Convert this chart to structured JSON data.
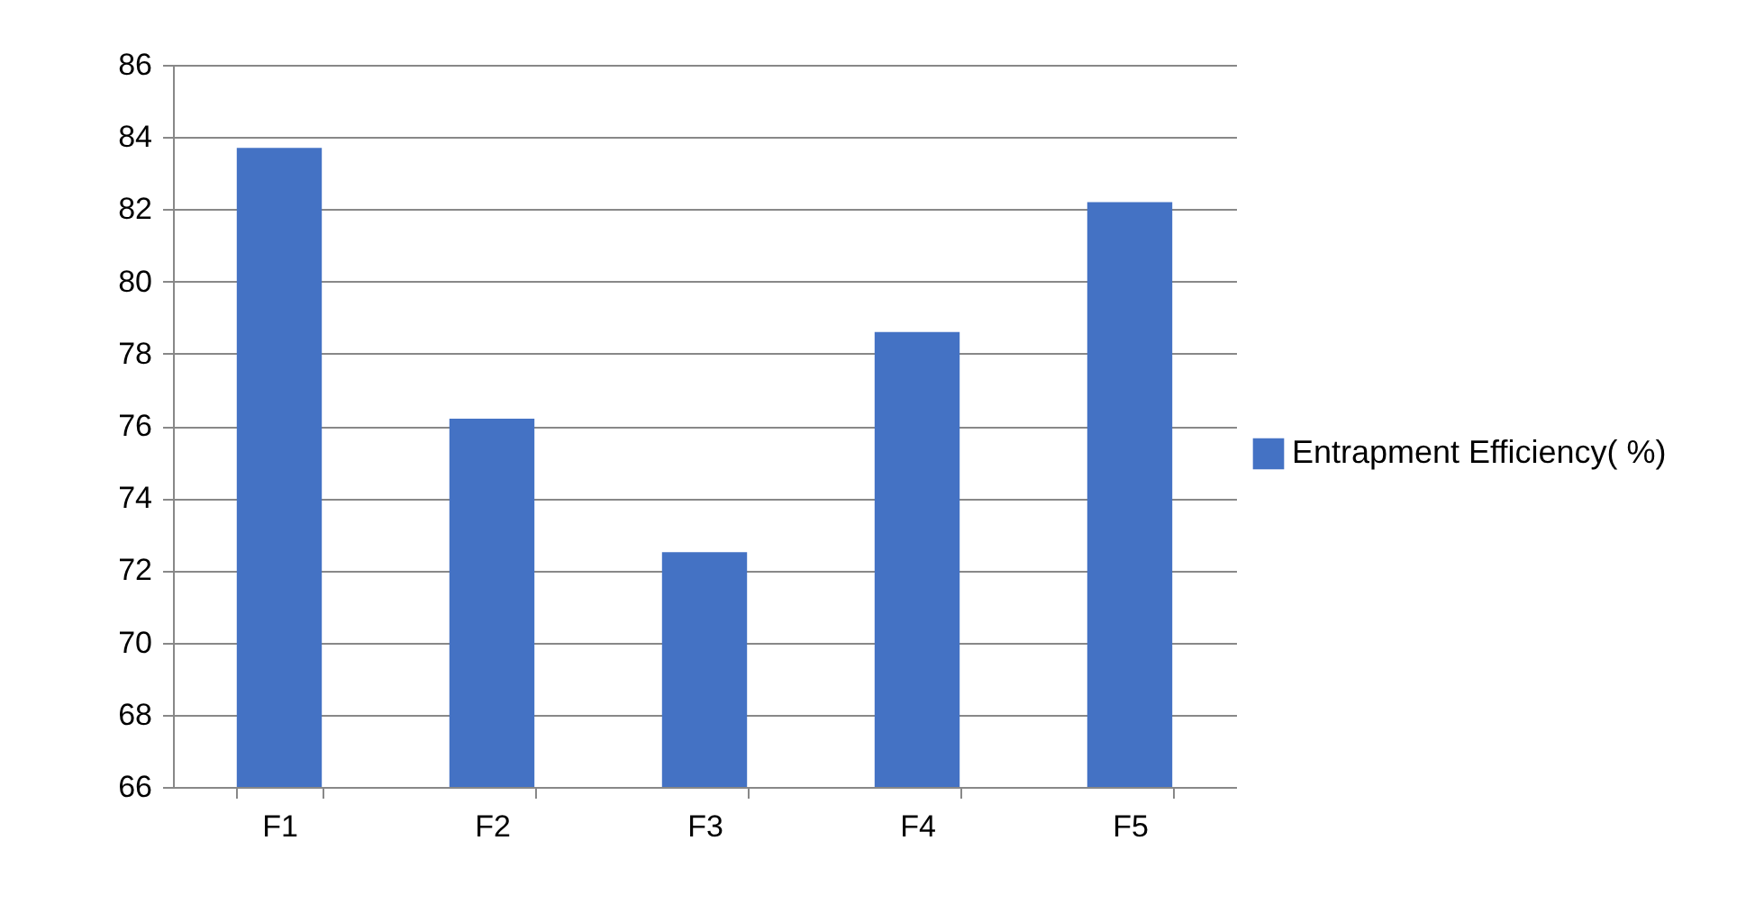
{
  "chart_data": {
    "type": "bar",
    "categories": [
      "F1",
      "F2",
      "F3",
      "F4",
      "F5"
    ],
    "series": [
      {
        "name": "Entrapment Efficiency( %)",
        "color": "#4472c4",
        "values": [
          83.7,
          76.2,
          72.5,
          78.6,
          82.2
        ]
      }
    ],
    "ylim": [
      66,
      86
    ],
    "yticks": [
      66,
      68,
      70,
      72,
      74,
      76,
      78,
      80,
      82,
      84,
      86
    ],
    "grid": "y",
    "legend": "right"
  }
}
